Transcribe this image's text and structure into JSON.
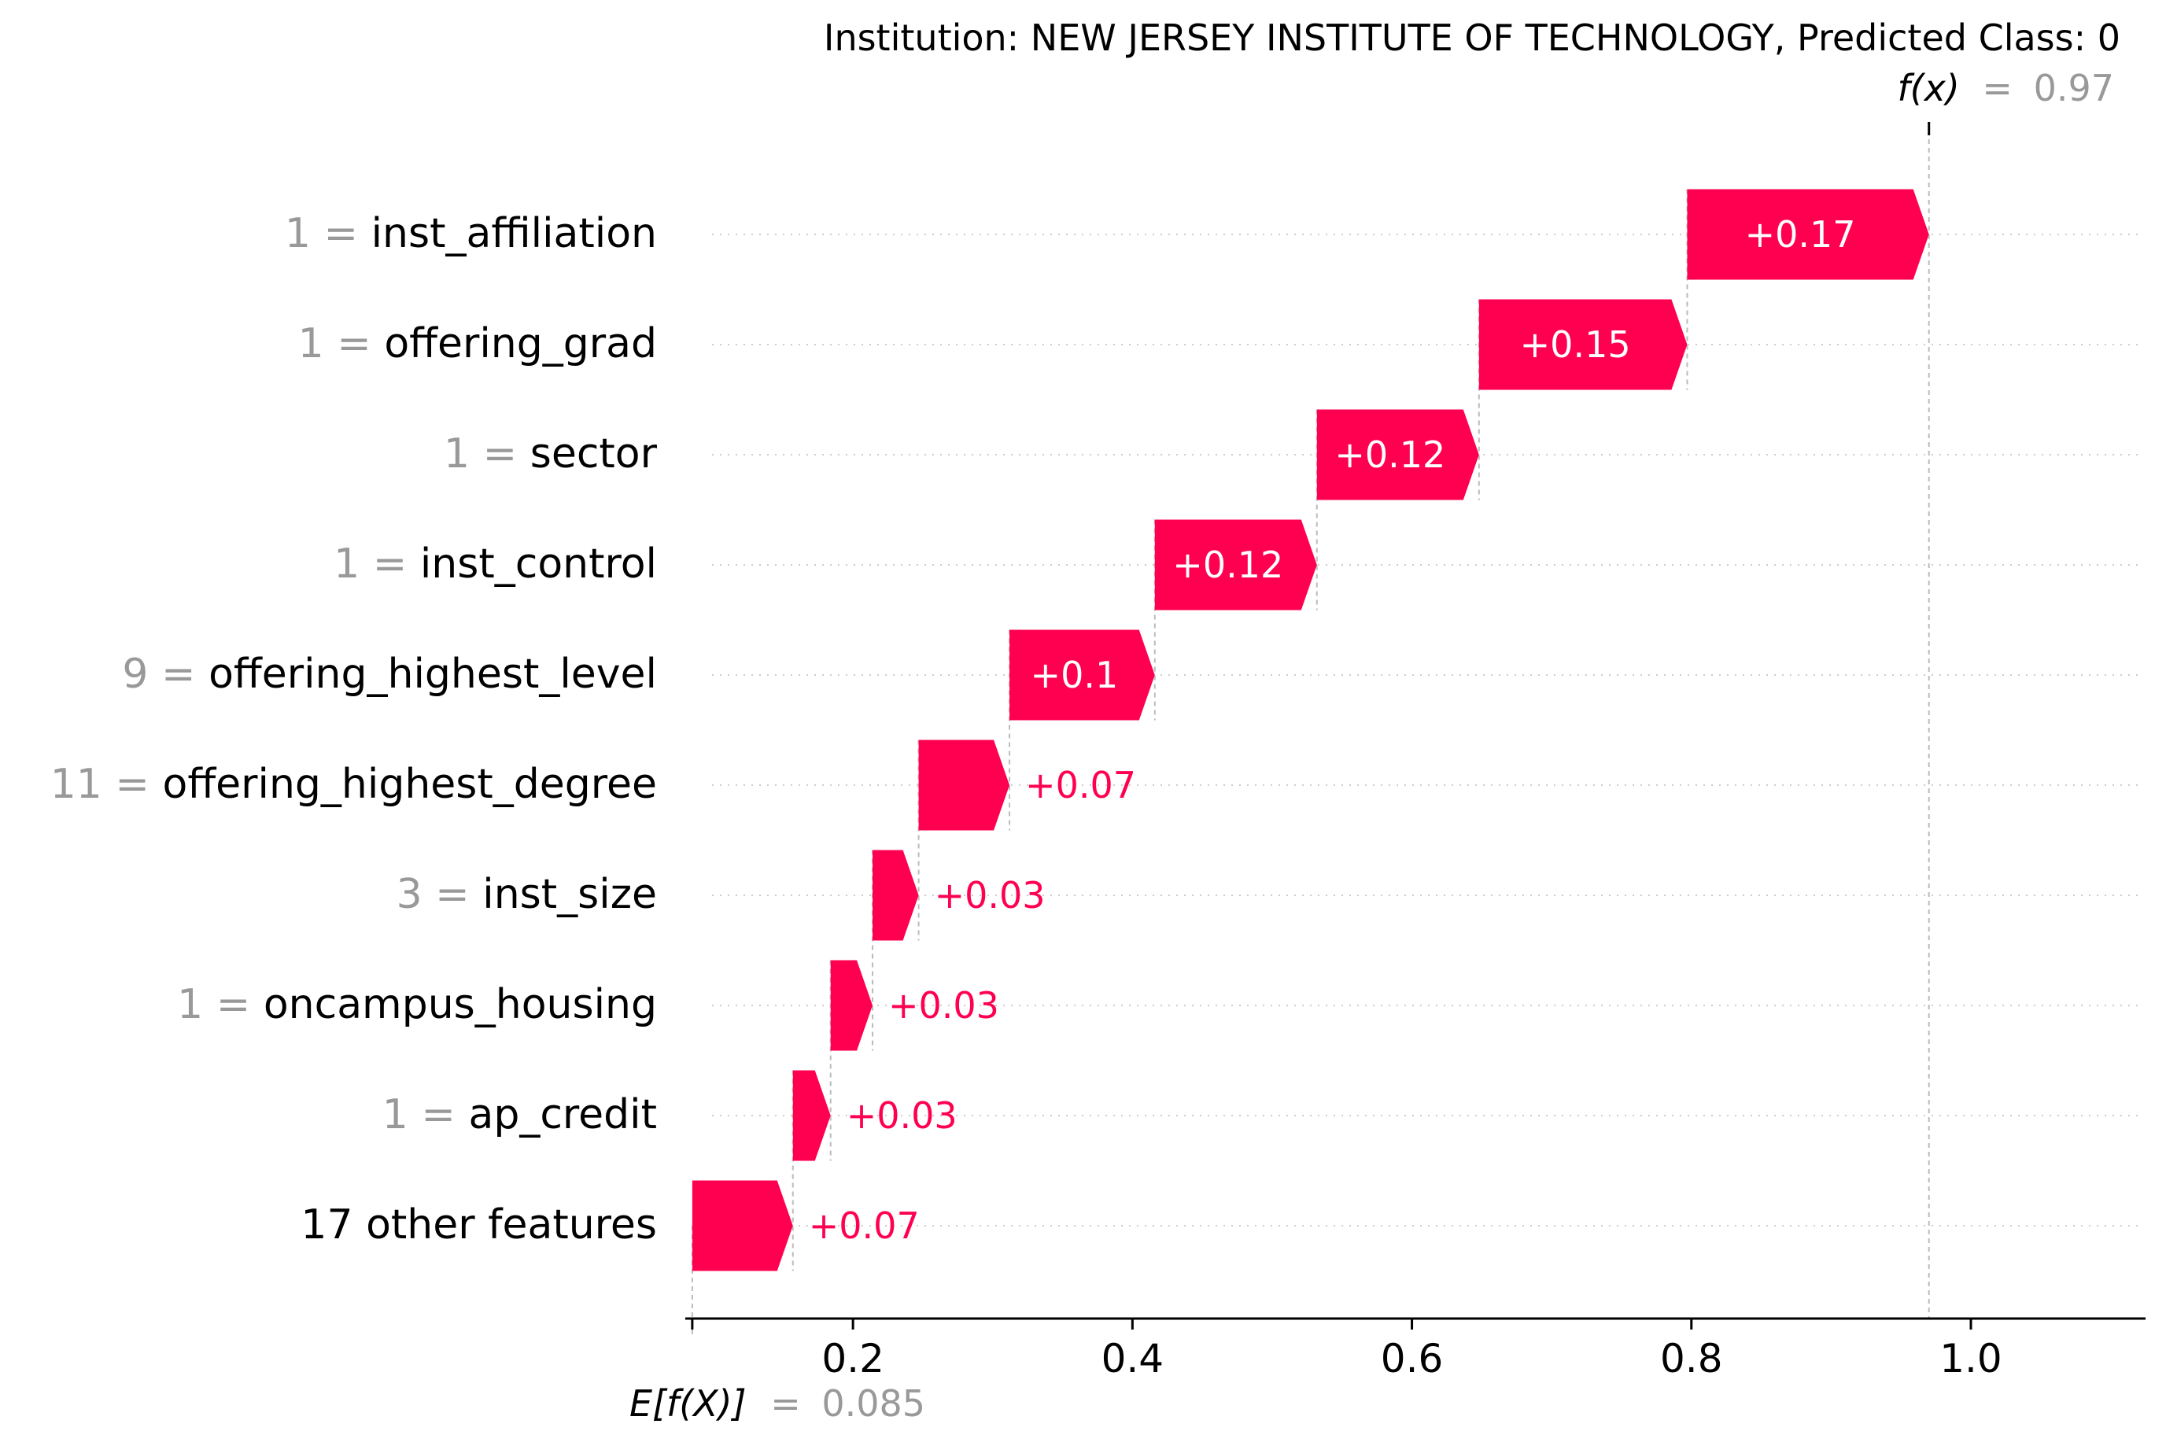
{
  "chart_data": {
    "type": "waterfall",
    "title": "Institution: NEW JERSEY INSTITUTE OF TECHNOLOGY, Predicted Class: 0",
    "fx": {
      "label": "f(x)",
      "eq": "=",
      "value_label": "0.97",
      "value": 0.97
    },
    "base": {
      "label": "E[f(X)]",
      "eq": "=",
      "value_label": "0.085",
      "value": 0.085
    },
    "xlim": [
      0.08,
      1.125
    ],
    "xticks": [
      {
        "value": 0.2,
        "label": "0.2"
      },
      {
        "value": 0.4,
        "label": "0.4"
      },
      {
        "value": 0.6,
        "label": "0.6"
      },
      {
        "value": 0.8,
        "label": "0.8"
      },
      {
        "value": 1.0,
        "label": "1.0"
      }
    ],
    "grid": "dotted horizontal per row",
    "colors": {
      "positive": "#ff0051",
      "feature_value": "#999999",
      "text": "#000000",
      "guide": "#bbbbbb"
    },
    "features": [
      {
        "value": "1",
        "name": "inst_affiliation",
        "contribution": 0.17,
        "label": "+0.17",
        "start": 0.797,
        "end": 0.97
      },
      {
        "value": "1",
        "name": "offering_grad",
        "contribution": 0.15,
        "label": "+0.15",
        "start": 0.648,
        "end": 0.797
      },
      {
        "value": "1",
        "name": "sector",
        "contribution": 0.12,
        "label": "+0.12",
        "start": 0.532,
        "end": 0.648
      },
      {
        "value": "1",
        "name": "inst_control",
        "contribution": 0.12,
        "label": "+0.12",
        "start": 0.416,
        "end": 0.532
      },
      {
        "value": "9",
        "name": "offering_highest_level",
        "contribution": 0.1,
        "label": "+0.1",
        "start": 0.312,
        "end": 0.416
      },
      {
        "value": "11",
        "name": "offering_highest_degree",
        "contribution": 0.07,
        "label": "+0.07",
        "start": 0.247,
        "end": 0.312
      },
      {
        "value": "3",
        "name": "inst_size",
        "contribution": 0.03,
        "label": "+0.03",
        "start": 0.214,
        "end": 0.247
      },
      {
        "value": "1",
        "name": "oncampus_housing",
        "contribution": 0.03,
        "label": "+0.03",
        "start": 0.184,
        "end": 0.214
      },
      {
        "value": "1",
        "name": "ap_credit",
        "contribution": 0.03,
        "label": "+0.03",
        "start": 0.157,
        "end": 0.184
      },
      {
        "value": "",
        "name": "17 other features",
        "contribution": 0.07,
        "label": "+0.07",
        "start": 0.085,
        "end": 0.157
      }
    ]
  }
}
